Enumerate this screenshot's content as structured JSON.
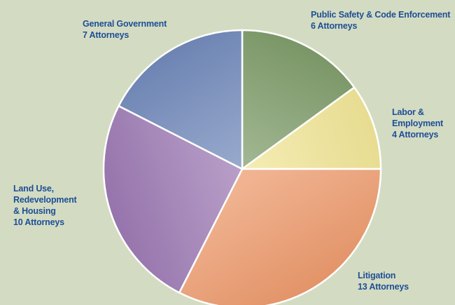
{
  "chart_data": {
    "type": "pie",
    "title": "",
    "start_angle_deg": -90,
    "direction": "clockwise",
    "slices": [
      {
        "label_lines": [
          "Public Safety & Code Enforcement",
          "6 Attorneys"
        ],
        "value": 6,
        "color": "#7f9c6a"
      },
      {
        "label_lines": [
          "Labor &",
          "Employment",
          "4 Attorneys"
        ],
        "value": 4,
        "color": "#f1e597"
      },
      {
        "label_lines": [
          "Litigation",
          "13 Attorneys"
        ],
        "value": 13,
        "color": "#ec9a6c"
      },
      {
        "label_lines": [
          "Land Use,",
          "Redevelopment",
          "& Housing",
          "10 Attorneys"
        ],
        "value": 10,
        "color": "#9c79b3"
      },
      {
        "label_lines": [
          "General Government",
          "7 Attorneys"
        ],
        "value": 7,
        "color": "#7289ba"
      }
    ],
    "label_color": "#1f4e96",
    "background_color": "#d3dcc2",
    "legend": "none",
    "slice_border_color": "#ffffff"
  }
}
